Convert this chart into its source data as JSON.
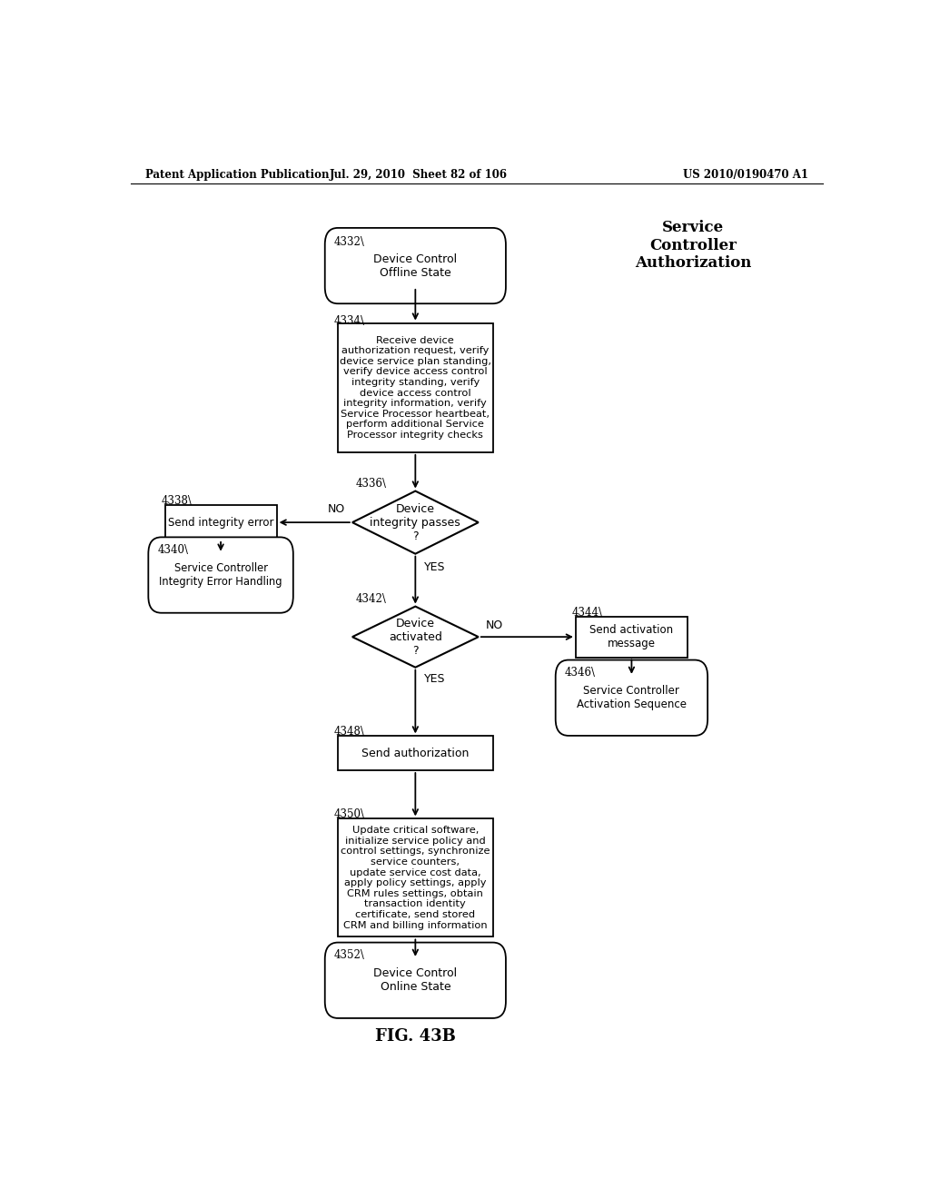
{
  "header_left": "Patent Application Publication",
  "header_mid": "Jul. 29, 2010  Sheet 82 of 106",
  "header_right": "US 2010/0190470 A1",
  "title_label": "Service\nController\nAuthorization",
  "figure_label": "FIG. 43B",
  "bg_color": "#ffffff"
}
